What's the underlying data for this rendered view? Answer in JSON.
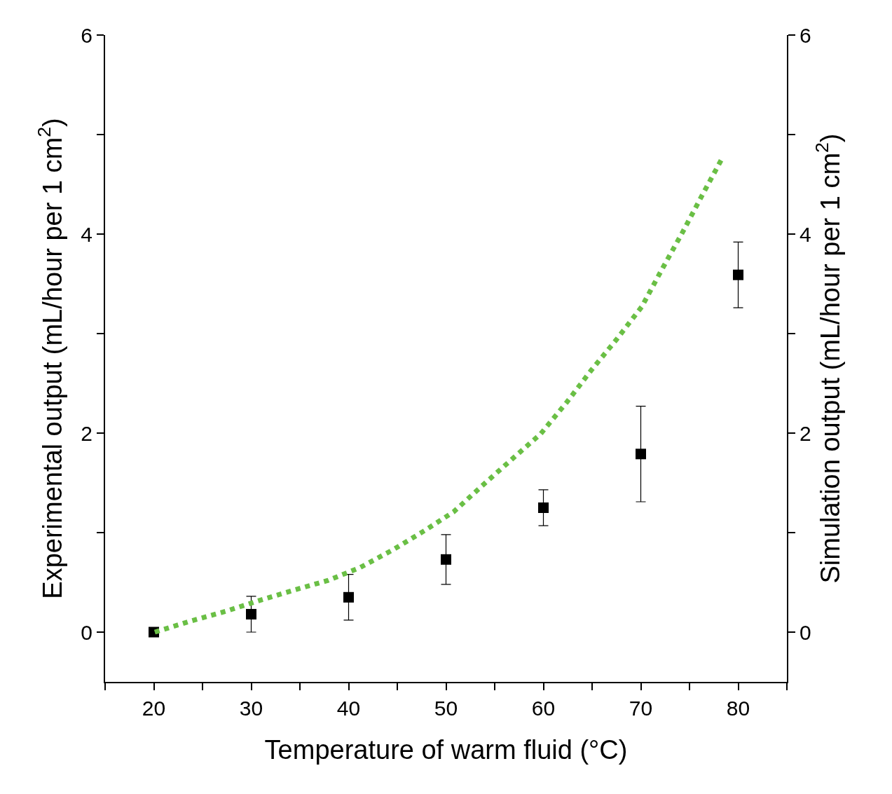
{
  "chart_data": {
    "type": "scatter",
    "xlabel": "Temperature of warm fluid (°C)",
    "ylabel": "Experimental output (mL/hour per 1 cm$^{2}$)",
    "y2label": "Simulation output (mL/hour per 1 cm$^{2}$)",
    "xlim": [
      15,
      85
    ],
    "xticks": [
      {
        "value": 15,
        "label": null
      },
      20,
      {
        "value": 25,
        "label": null
      },
      30,
      {
        "value": 35,
        "label": null
      },
      40,
      {
        "value": 45,
        "label": null
      },
      50,
      {
        "value": 55,
        "label": null
      },
      60,
      {
        "value": 65,
        "label": null
      },
      70,
      {
        "value": 75,
        "label": null
      },
      80,
      {
        "value": 85,
        "label": null
      }
    ],
    "ylim": [
      -0.5,
      6
    ],
    "yticks": [
      0,
      {
        "value": 1,
        "label": null
      },
      2,
      {
        "value": 3,
        "label": null
      },
      4,
      {
        "value": 5,
        "label": null
      },
      6
    ],
    "y2lim": [
      -0.5,
      6
    ],
    "y2ticks": [
      0,
      {
        "value": 1,
        "label": null
      },
      2,
      {
        "value": 3,
        "label": null
      },
      4,
      {
        "value": 5,
        "label": null
      },
      6
    ],
    "series": [
      {
        "color": "#000000",
        "marker": "square",
        "x": [
          20,
          30,
          40,
          50,
          60,
          70,
          80
        ],
        "values": [
          0,
          0.18,
          0.35,
          0.73,
          1.25,
          1.79,
          3.59
        ],
        "errors": [
          null,
          0.18,
          0.23,
          0.25,
          0.18,
          0.48,
          0.33
        ]
      },
      {
        "type": "line",
        "axis": "y2",
        "color": "#6abf45",
        "line_style": "dotted",
        "marker": "none",
        "x": [
          20.1,
          23.75,
          27.4,
          30.9,
          34.3,
          37.9,
          41.2,
          44.6,
          47.8,
          50.8,
          53.7,
          56.8,
          59.7,
          62.4,
          64.9,
          67.5,
          70.1,
          72.2,
          74.3,
          76.3,
          78.4
        ],
        "values": [
          0,
          0.11,
          0.21,
          0.32,
          0.42,
          0.52,
          0.65,
          0.83,
          1.02,
          1.21,
          1.47,
          1.74,
          1.99,
          2.31,
          2.63,
          2.94,
          3.27,
          3.65,
          4.02,
          4.39,
          4.77
        ]
      }
    ]
  }
}
